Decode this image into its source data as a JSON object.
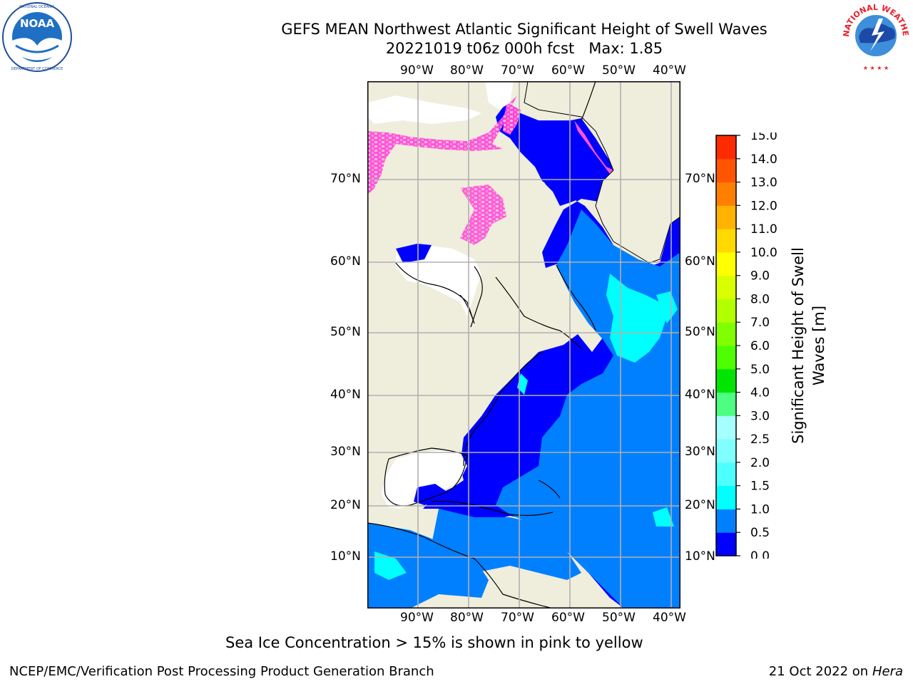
{
  "title": {
    "line1": "GEFS MEAN Northwest Atlantic Significant Height of Swell Waves",
    "line2": "20221019 t06z 000h fcst   Max: 1.85"
  },
  "logos": {
    "noaa": {
      "center_text": "NOAA",
      "ring_text": "NATIONAL OCEANIC AND ATMOSPHERIC ADMINISTRATION · U.S. DEPARTMENT OF COMMERCE",
      "icon": "noaa-logo"
    },
    "nws": {
      "ring_text": "NATIONAL WEATHER SERVICE",
      "icon": "nws-logo"
    }
  },
  "map": {
    "lon_labels": [
      "90°W",
      "80°W",
      "70°W",
      "60°W",
      "50°W",
      "40°W"
    ],
    "lat_labels": [
      "70°N",
      "60°N",
      "50°N",
      "40°N",
      "30°N",
      "20°N",
      "10°N"
    ],
    "colors": {
      "land": "#efeddc",
      "ice_mask": "#ffffff",
      "grid": "#b0b0b0"
    }
  },
  "colorbar": {
    "label": "Significant Height of Swell Waves [m]",
    "ticks": [
      "0.0",
      "0.5",
      "1.0",
      "1.5",
      "2.0",
      "2.5",
      "3.0",
      "4.0",
      "5.0",
      "6.0",
      "7.0",
      "8.0",
      "9.0",
      "10.0",
      "11.0",
      "12.0",
      "13.0",
      "14.0",
      "15.0"
    ],
    "colors": [
      "#0000ff",
      "#0080ff",
      "#00ffff",
      "#4dffff",
      "#80ffff",
      "#a6ffff",
      "#4dff80",
      "#00e600",
      "#4dff00",
      "#80ff00",
      "#b3ff00",
      "#d9ff00",
      "#ffff00",
      "#ffd900",
      "#ffb300",
      "#ff8000",
      "#ff5500",
      "#ff2b00",
      "#ff0000"
    ]
  },
  "caption": "Sea Ice Concentration > 15% is shown in pink to yellow",
  "footer": {
    "left": "NCEP/EMC/Verification Post Processing Product Generation Branch",
    "right_prefix": "21 Oct 2022 on ",
    "right_host": "Hera"
  }
}
